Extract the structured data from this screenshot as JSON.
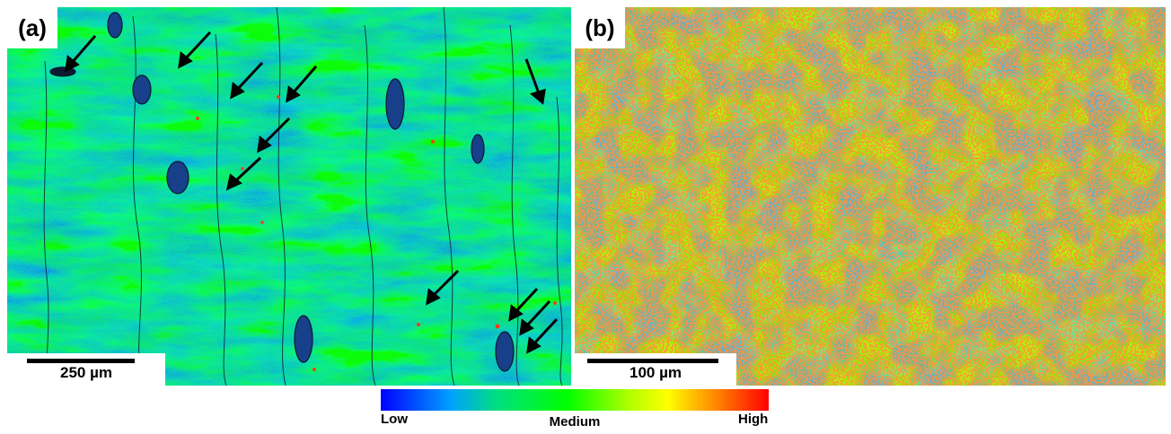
{
  "panels": [
    {
      "label": "(a)",
      "scale_bar": "250 µm"
    },
    {
      "label": "(b)",
      "scale_bar": "100 µm"
    }
  ],
  "colorbar": {
    "low": "Low",
    "medium": "Medium",
    "high": "High"
  },
  "colors": {
    "low": "#0000ff",
    "medium": "#00ff00",
    "high": "#ff0000"
  }
}
